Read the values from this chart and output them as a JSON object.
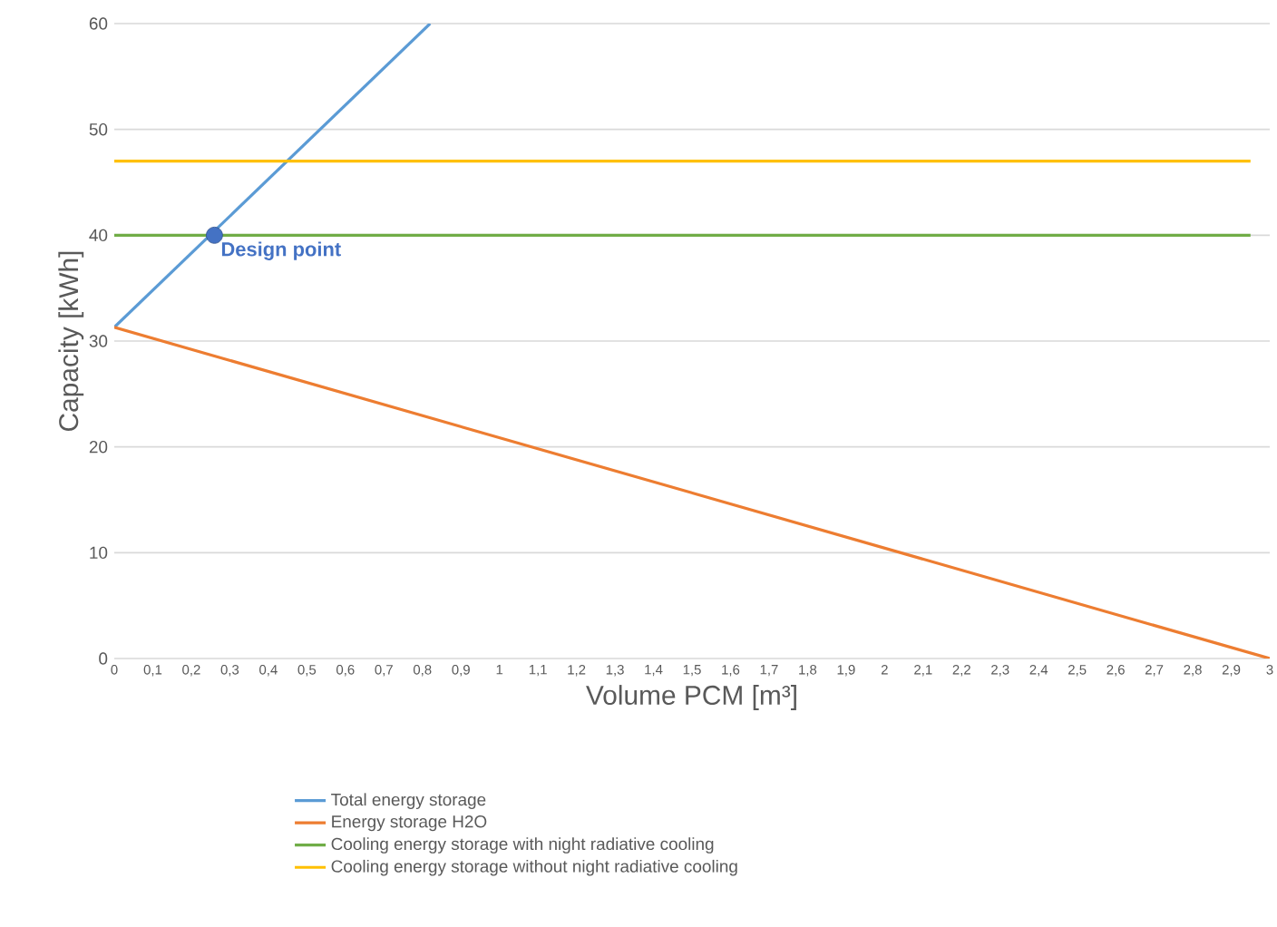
{
  "chart_data": {
    "type": "line",
    "xlabel": "Volume PCM [m³]",
    "ylabel": "Capacity [kWh]",
    "xlim": [
      0,
      3
    ],
    "ylim": [
      0,
      60
    ],
    "yticks": [
      0,
      10,
      20,
      30,
      40,
      50,
      60
    ],
    "xticks": [
      0,
      {
        "value": 0.1,
        "label": "0,1"
      },
      {
        "value": 0.2,
        "label": "0,2"
      },
      {
        "value": 0.3,
        "label": "0,3"
      },
      {
        "value": 0.4,
        "label": "0,4"
      },
      {
        "value": 0.5,
        "label": "0,5"
      },
      {
        "value": 0.6,
        "label": "0,6"
      },
      {
        "value": 0.7,
        "label": "0,7"
      },
      {
        "value": 0.8,
        "label": "0,8"
      },
      {
        "value": 0.9,
        "label": "0,9"
      },
      1,
      {
        "value": 1.1,
        "label": "1,1"
      },
      {
        "value": 1.2,
        "label": "1,2"
      },
      {
        "value": 1.3,
        "label": "1,3"
      },
      {
        "value": 1.4,
        "label": "1,4"
      },
      {
        "value": 1.5,
        "label": "1,5"
      },
      {
        "value": 1.6,
        "label": "1,6"
      },
      {
        "value": 1.7,
        "label": "1,7"
      },
      {
        "value": 1.8,
        "label": "1,8"
      },
      {
        "value": 1.9,
        "label": "1,9"
      },
      2,
      {
        "value": 2.1,
        "label": "2,1"
      },
      {
        "value": 2.2,
        "label": "2,2"
      },
      {
        "value": 2.3,
        "label": "2,3"
      },
      {
        "value": 2.4,
        "label": "2,4"
      },
      {
        "value": 2.5,
        "label": "2,5"
      },
      {
        "value": 2.6,
        "label": "2,6"
      },
      {
        "value": 2.7,
        "label": "2,7"
      },
      {
        "value": 2.8,
        "label": "2,8"
      },
      {
        "value": 2.9,
        "label": "2,9"
      },
      3
    ],
    "grid": "y",
    "legend": "bottom",
    "line_style": "solid",
    "series": [
      {
        "name": "Total energy storage",
        "color": "#5b9bd5",
        "x": [
          0,
          0.82
        ],
        "values": [
          31.3,
          60
        ]
      },
      {
        "name": "Energy storage H2O",
        "color": "#ed7d31",
        "x": [
          0,
          3
        ],
        "values": [
          31.3,
          0
        ]
      },
      {
        "name": "Cooling energy storage with night radiative cooling",
        "color": "#70ad47",
        "x": [
          0,
          2.95
        ],
        "values": [
          40,
          40
        ]
      },
      {
        "name": "Cooling energy storage without night radiative cooling",
        "color": "#ffc000",
        "x": [
          0,
          2.95
        ],
        "values": [
          47,
          47
        ]
      },
      {
        "type": "scatter",
        "marker": "circle",
        "color": "#4472c4",
        "x": [
          0.26
        ],
        "values": [
          40
        ]
      }
    ],
    "annotations": [
      {
        "text": "Design point",
        "x": 0.26,
        "y": 40
      }
    ]
  }
}
